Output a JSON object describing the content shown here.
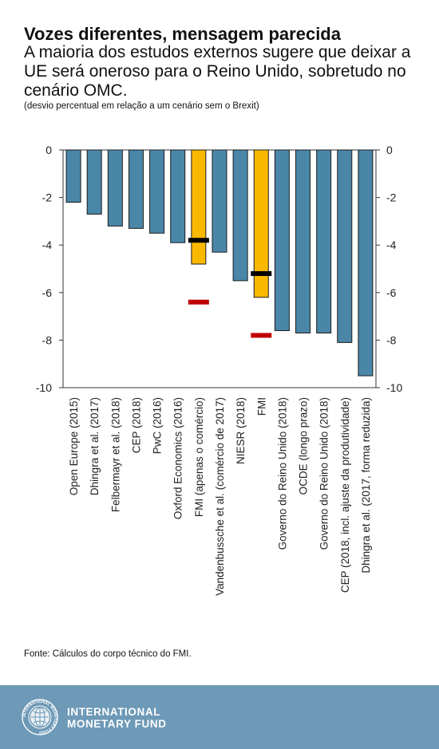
{
  "title": "Vozes diferentes, mensagem parecida",
  "subtitle": "A maioria dos estudos externos sugere que deixar a UE será oneroso para o Reino Unido, sobretudo no cenário OMC.",
  "note": "(desvio percentual em relação a um cenário sem o Brexit)",
  "source": "Fonte: Cálculos do corpo técnico do FMI.",
  "footer": {
    "logo_line1": "INTERNATIONAL",
    "logo_line2": "MONETARY FUND",
    "seal_text": "INTERNATIONAL MONETARY FUND"
  },
  "colors": {
    "bar": "#4a86a8",
    "highlight": "#f9b900",
    "black_marker": "#000000",
    "red_marker": "#c00000",
    "footer": "#6e99b7"
  },
  "chart_data": {
    "type": "bar",
    "categories": [
      "Open Europe (2015)",
      "Dhingra et al. (2017)",
      "Felbermayr et al. (2018)",
      "CEP (2018)",
      "PwC (2016)",
      "Oxford Economics (2016)",
      "FMI (apenas o comércio)",
      "Vandenbussche et al. (comércio de 2017)",
      "NIESR (2018)",
      "FMI",
      "Governo do Reino Unido (2018)",
      "OCDE (longo prazo)",
      "Governo do Reino Unido (2018)",
      "CEP (2018, incl. ajuste da produtividade)",
      "Dhingra et al. (2017, forma reduzida)"
    ],
    "values": [
      -2.2,
      -2.7,
      -3.2,
      -3.3,
      -3.5,
      -3.9,
      -4.8,
      -4.3,
      -5.5,
      -6.2,
      -7.6,
      -7.7,
      -7.7,
      -8.1,
      -9.5
    ],
    "highlighted": [
      6,
      9
    ],
    "markers": [
      {
        "category_index": 6,
        "value": -3.8,
        "color": "black"
      },
      {
        "category_index": 6,
        "value": -6.4,
        "color": "red"
      },
      {
        "category_index": 9,
        "value": -5.2,
        "color": "black"
      },
      {
        "category_index": 9,
        "value": -7.8,
        "color": "red"
      }
    ],
    "ylim": [
      -10,
      0
    ],
    "yticks": [
      0,
      -2,
      -4,
      -6,
      -8,
      -10
    ],
    "ytick_labels": [
      "0",
      "-2",
      "-4",
      "-6",
      "-8",
      "-10"
    ],
    "grid": false,
    "xlabel": "",
    "ylabel": ""
  }
}
